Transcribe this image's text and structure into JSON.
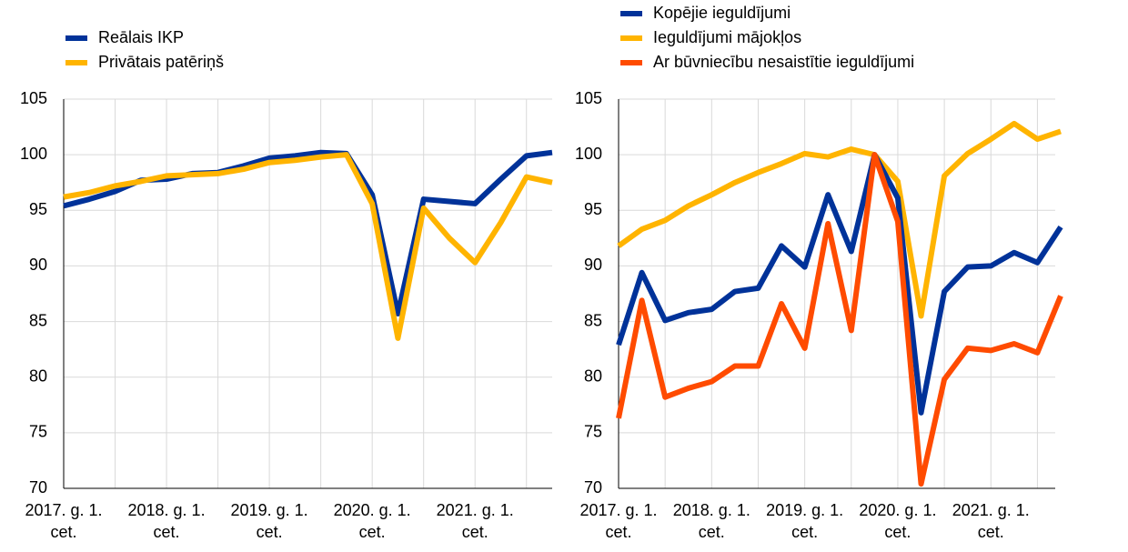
{
  "chart_data": [
    {
      "type": "line",
      "categories": [
        "2017. g. 1. cet.",
        null,
        null,
        null,
        "2018. g. 1. cet.",
        null,
        null,
        null,
        "2019. g. 1. cet.",
        null,
        null,
        null,
        "2020. g. 1. cet.",
        null,
        null,
        null,
        "2021. g. 1. cet.",
        null,
        null,
        null
      ],
      "series": [
        {
          "name": "Reālais IKP",
          "color": "#003299",
          "values": [
            95.4,
            96.0,
            96.7,
            97.7,
            97.8,
            98.3,
            98.4,
            99.0,
            99.7,
            99.9,
            100.2,
            100.1,
            96.4,
            85.7,
            96.0,
            95.8,
            95.6,
            97.8,
            99.9,
            100.2
          ]
        },
        {
          "name": "Privātais patēriņš",
          "color": "#FFB400",
          "values": [
            96.2,
            96.6,
            97.2,
            97.6,
            98.1,
            98.2,
            98.3,
            98.7,
            99.3,
            99.5,
            99.8,
            100.0,
            95.6,
            83.5,
            95.2,
            92.5,
            90.3,
            93.9,
            98.0,
            97.5
          ]
        }
      ],
      "ylim": [
        70,
        105
      ],
      "yticks": [
        70,
        75,
        80,
        85,
        90,
        95,
        100,
        105
      ],
      "grid": true,
      "legend": "top-left"
    },
    {
      "type": "line",
      "categories": [
        "2017. g. 1. cet.",
        null,
        null,
        null,
        "2018. g. 1. cet.",
        null,
        null,
        null,
        "2019. g. 1. cet.",
        null,
        null,
        null,
        "2020. g. 1. cet.",
        null,
        null,
        null,
        "2021. g. 1. cet.",
        null,
        null,
        null
      ],
      "series": [
        {
          "name": "Kopējie ieguldījumi",
          "color": "#003299",
          "values": [
            82.9,
            89.4,
            85.1,
            85.8,
            86.1,
            87.7,
            88.0,
            91.8,
            89.9,
            96.4,
            91.3,
            100.0,
            96.1,
            76.8,
            87.7,
            89.9,
            90.0,
            91.2,
            90.3,
            93.5
          ]
        },
        {
          "name": "Ieguldījumi mājokļos",
          "color": "#FFB400",
          "values": [
            91.8,
            93.3,
            94.1,
            95.4,
            96.4,
            97.5,
            98.4,
            99.2,
            100.1,
            99.8,
            100.5,
            100.0,
            97.6,
            85.5,
            98.1,
            100.1,
            101.4,
            102.8,
            101.4,
            102.1
          ]
        },
        {
          "name": "Ar būvniecību nesaistītie ieguldījumi",
          "color": "#FF4B00",
          "values": [
            76.3,
            86.9,
            78.2,
            79.0,
            79.6,
            81.0,
            81.0,
            86.6,
            82.6,
            93.8,
            84.2,
            100.0,
            94.0,
            70.4,
            79.8,
            82.6,
            82.4,
            83.0,
            82.2,
            87.3
          ]
        }
      ],
      "ylim": [
        70,
        105
      ],
      "yticks": [
        70,
        75,
        80,
        85,
        90,
        95,
        100,
        105
      ],
      "grid": true,
      "legend": "top-left"
    }
  ]
}
